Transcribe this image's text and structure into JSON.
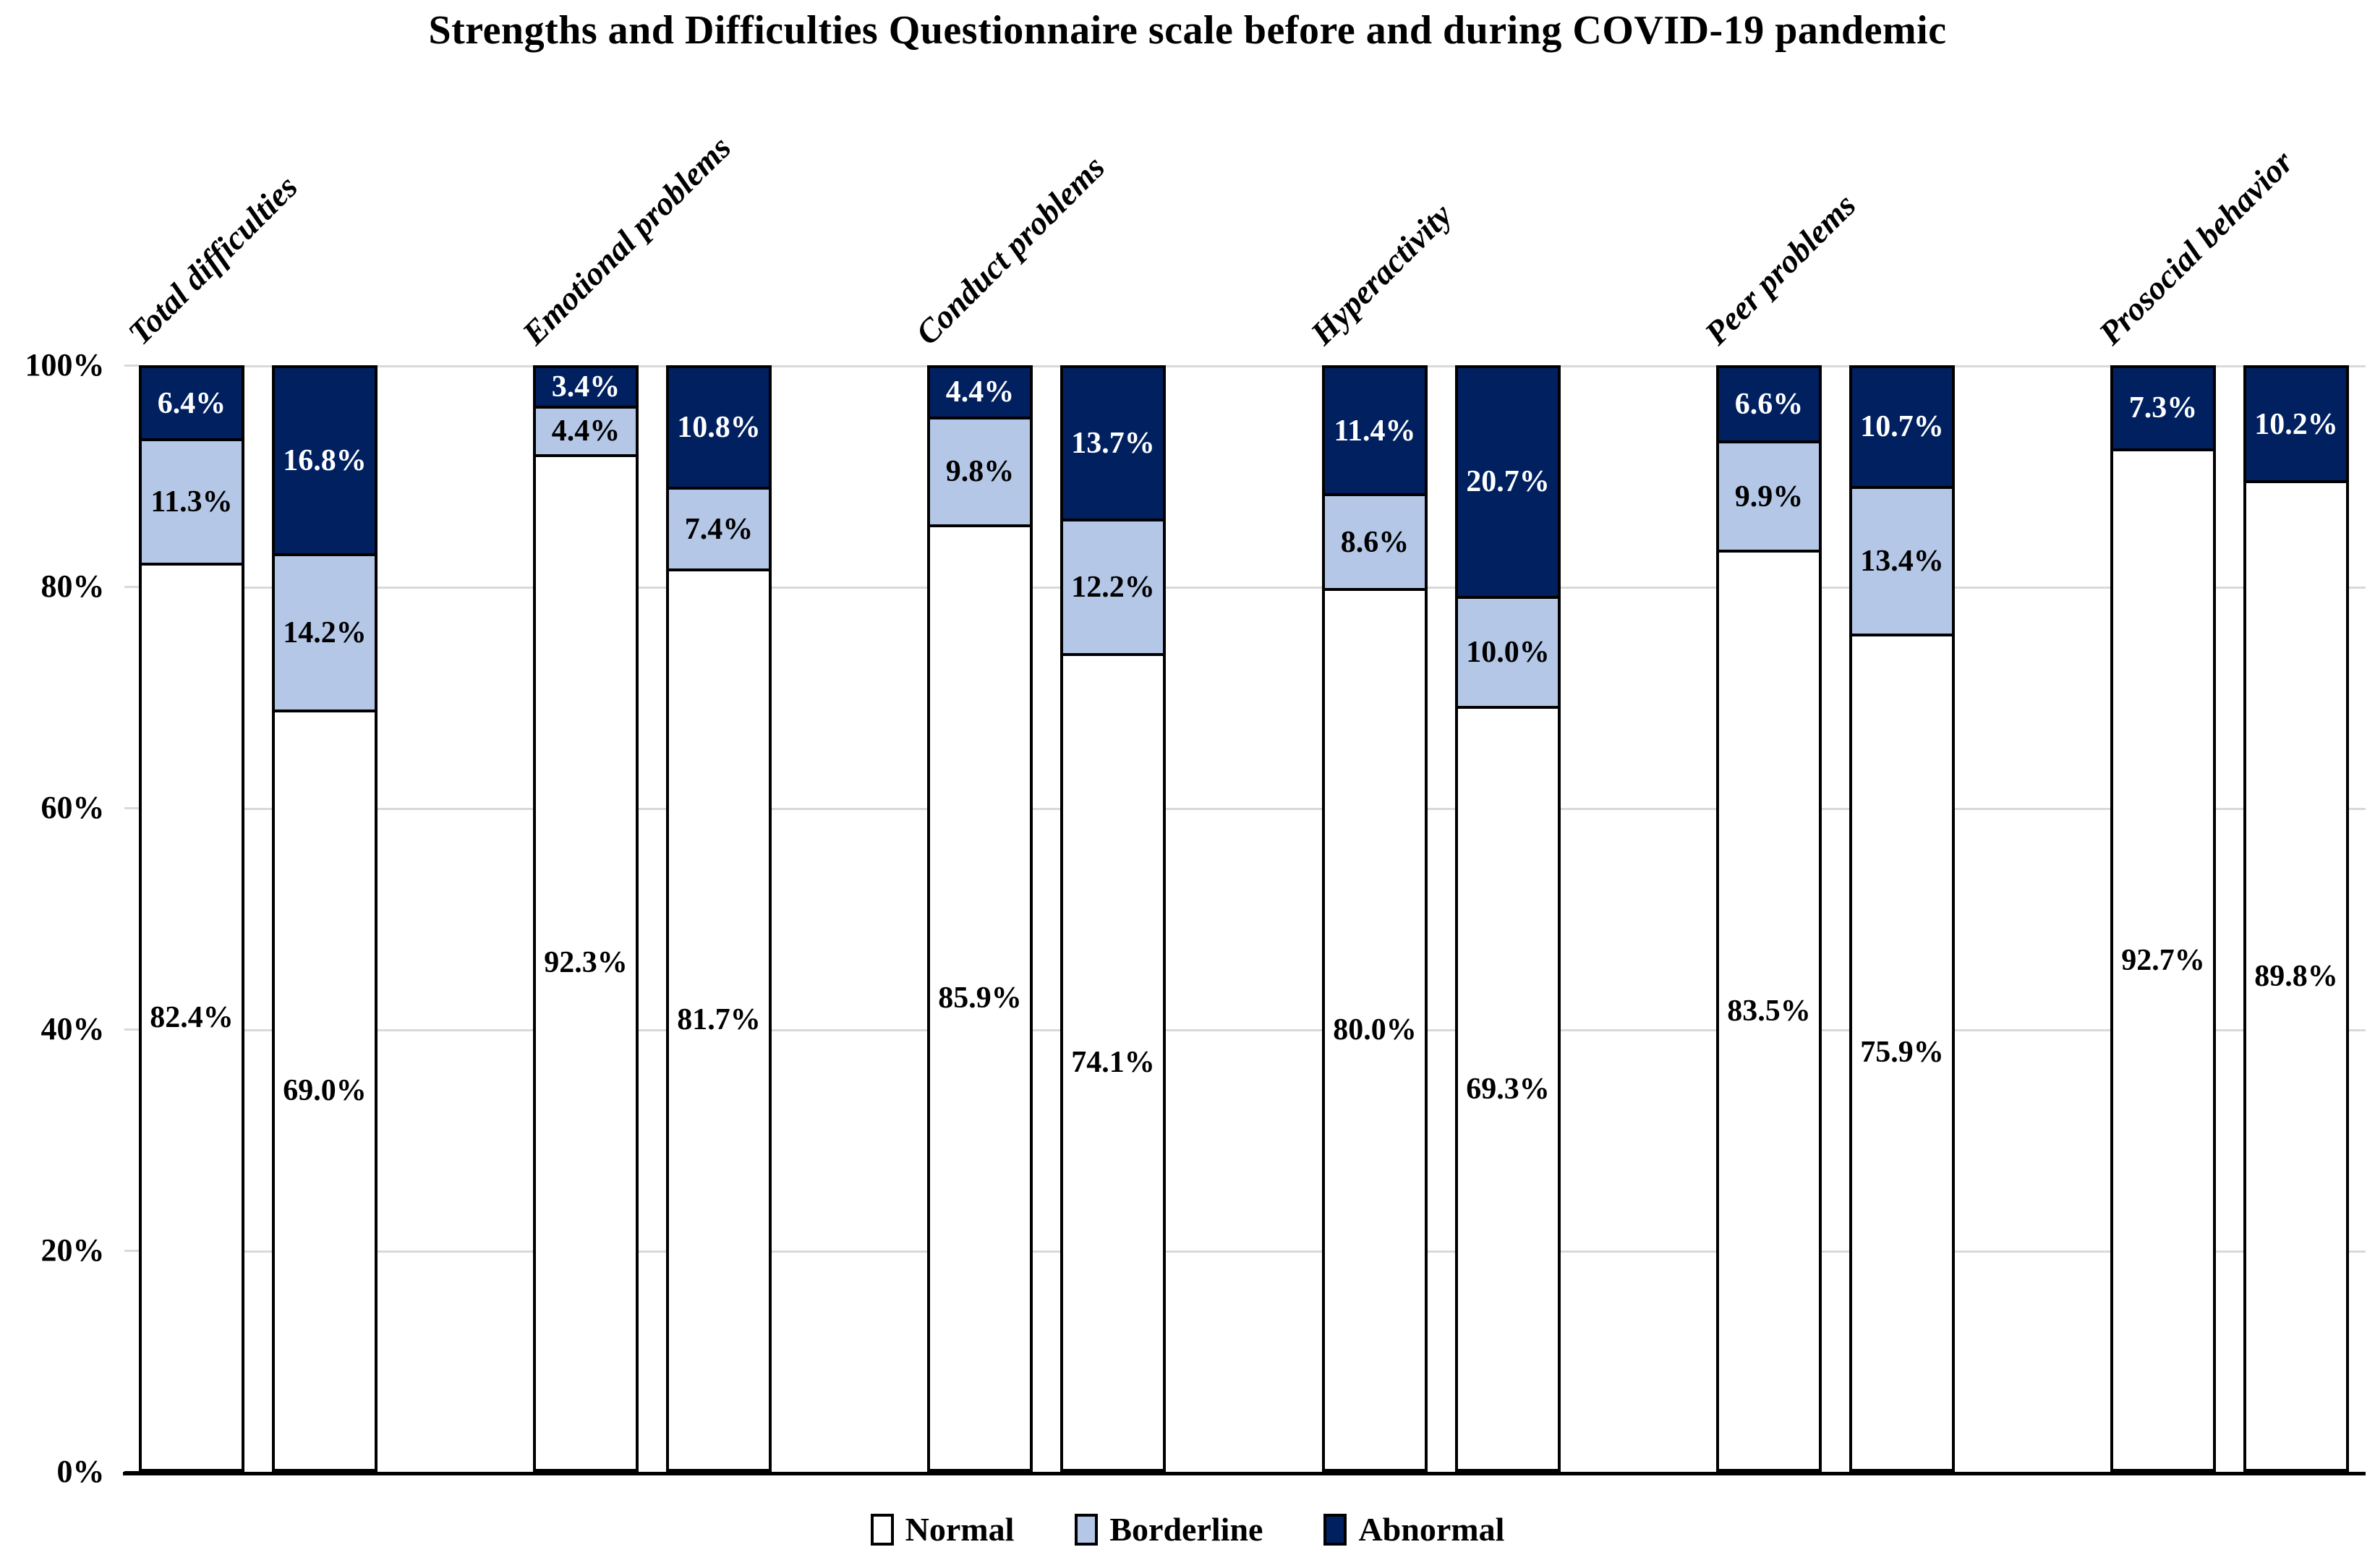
{
  "title": "Strengths and Difficulties Questionnaire scale before and during COVID-19 pandemic",
  "colors": {
    "normal": "#FFFFFF",
    "borderline": "#B4C7E7",
    "abnormal": "#002060",
    "segment_border": "#000000",
    "gridline": "#D9D9D9",
    "axis": "#000000",
    "label_on_dark": "#FFFFFF",
    "label_on_light": "#000000"
  },
  "y_axis": {
    "tick_labels": [
      "100%",
      "80%",
      "60%",
      "40%",
      "20%",
      "0%"
    ]
  },
  "legend": {
    "items": [
      {
        "label": "Normal",
        "color": "#FFFFFF"
      },
      {
        "label": "Borderline",
        "color": "#B4C7E7"
      },
      {
        "label": "Abnormal",
        "color": "#002060"
      }
    ]
  },
  "chart_data": {
    "type": "bar",
    "stacked": true,
    "orientation": "vertical",
    "unit": "percent",
    "ylim": [
      0,
      100
    ],
    "y_ticks": [
      0,
      20,
      40,
      60,
      80,
      100
    ],
    "grid": "horizontal",
    "legend_position": "bottom",
    "title": "Strengths and Difficulties Questionnaire scale before and during COVID-19 pandemic",
    "series_stack_order_bottom_to_top": [
      "Normal",
      "Borderline",
      "Abnormal"
    ],
    "categories": [
      "Total difficulties",
      "Emotional problems",
      "Conduct problems",
      "Hyperactivity",
      "Peer problems",
      "Prosocial behavior"
    ],
    "groups": [
      {
        "category": "Total difficulties",
        "bars": [
          {
            "Normal": 82.4,
            "Borderline": 11.3,
            "Abnormal": 6.4
          },
          {
            "Normal": 69.0,
            "Borderline": 14.2,
            "Abnormal": 16.8
          }
        ]
      },
      {
        "category": "Emotional problems",
        "bars": [
          {
            "Normal": 92.3,
            "Borderline": 4.4,
            "Abnormal": 3.4
          },
          {
            "Normal": 81.7,
            "Borderline": 7.4,
            "Abnormal": 10.8
          }
        ]
      },
      {
        "category": "Conduct problems",
        "bars": [
          {
            "Normal": 85.9,
            "Borderline": 9.8,
            "Abnormal": 4.4
          },
          {
            "Normal": 74.1,
            "Borderline": 12.2,
            "Abnormal": 13.7
          }
        ]
      },
      {
        "category": "Hyperactivity",
        "bars": [
          {
            "Normal": 80.0,
            "Borderline": 8.6,
            "Abnormal": 11.4
          },
          {
            "Normal": 69.3,
            "Borderline": 10.0,
            "Abnormal": 20.7
          }
        ]
      },
      {
        "category": "Peer problems",
        "bars": [
          {
            "Normal": 83.5,
            "Borderline": 9.9,
            "Abnormal": 6.6
          },
          {
            "Normal": 75.9,
            "Borderline": 13.4,
            "Abnormal": 10.7
          }
        ]
      },
      {
        "category": "Prosocial behavior",
        "bars": [
          {
            "Normal": 92.7,
            "Borderline": 0.0,
            "Abnormal": 7.3
          },
          {
            "Normal": 89.8,
            "Borderline": 0.0,
            "Abnormal": 10.2
          }
        ]
      }
    ]
  }
}
